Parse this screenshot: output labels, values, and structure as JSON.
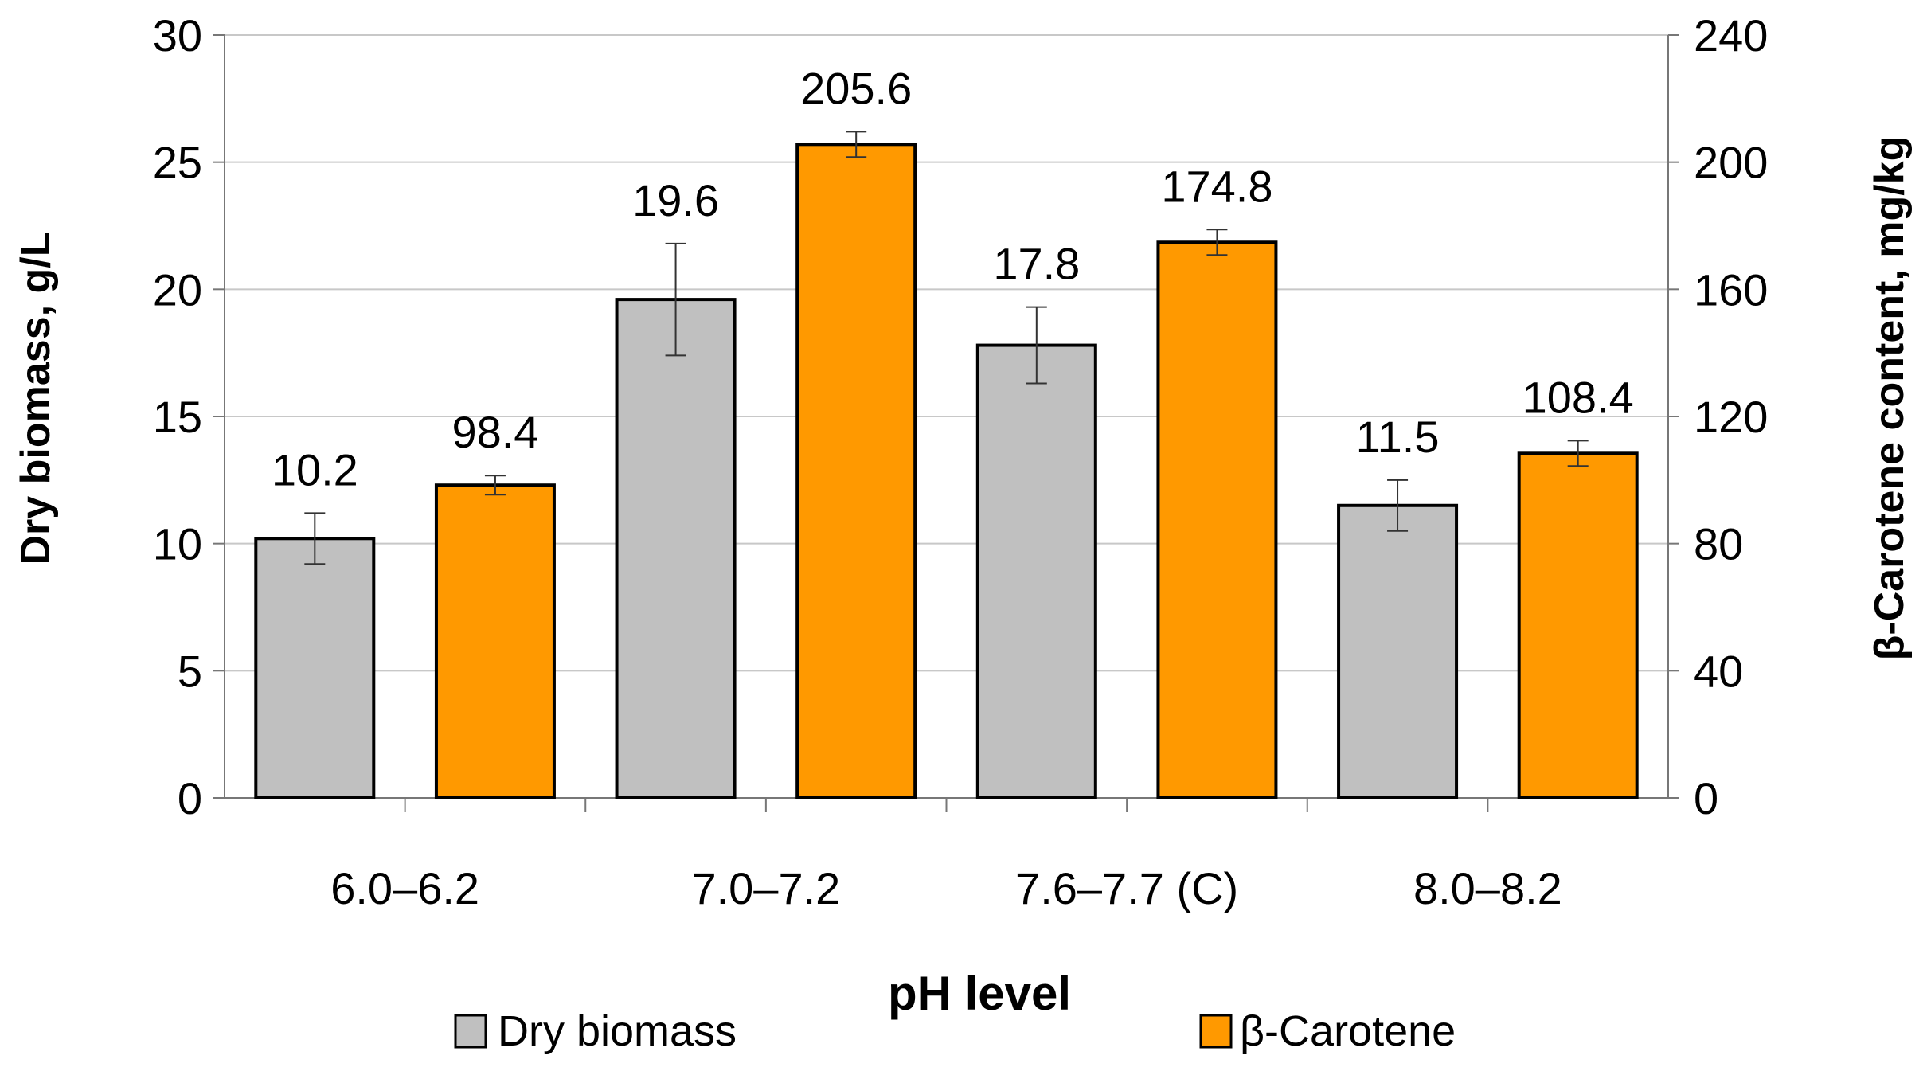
{
  "chart_data": {
    "type": "bar",
    "title": "",
    "xlabel": "pH level",
    "ylabel": "Dry biomass, g/L",
    "y2label": "β-Carotene content, mg/kg",
    "ylim": [
      0,
      30
    ],
    "y2lim": [
      0,
      240
    ],
    "yticks": [
      "0",
      "5",
      "10",
      "15",
      "20",
      "25",
      "30"
    ],
    "y2ticks": [
      "0",
      "40",
      "80",
      "120",
      "160",
      "200",
      "240"
    ],
    "grid": true,
    "legend_position": "bottom",
    "categories": [
      "6.0–6.2",
      "7.0–7.2",
      "7.6–7.7 (C)",
      "8.0–8.2"
    ],
    "series": [
      {
        "name": "Dry biomass",
        "axis": "left",
        "color": "#c0c0c0",
        "values": [
          10.2,
          19.6,
          17.8,
          11.5
        ],
        "labels": [
          "10.2",
          "19.6",
          "17.8",
          "11.5"
        ],
        "errors": [
          1.0,
          2.2,
          1.5,
          1.0
        ]
      },
      {
        "name": "β-Carotene",
        "axis": "right",
        "color": "#ff9900",
        "values": [
          98.4,
          205.6,
          174.8,
          108.4
        ],
        "labels": [
          "98.4",
          "205.6",
          "174.8",
          "108.4"
        ],
        "errors": [
          3.0,
          4.0,
          4.0,
          4.0
        ]
      }
    ]
  }
}
